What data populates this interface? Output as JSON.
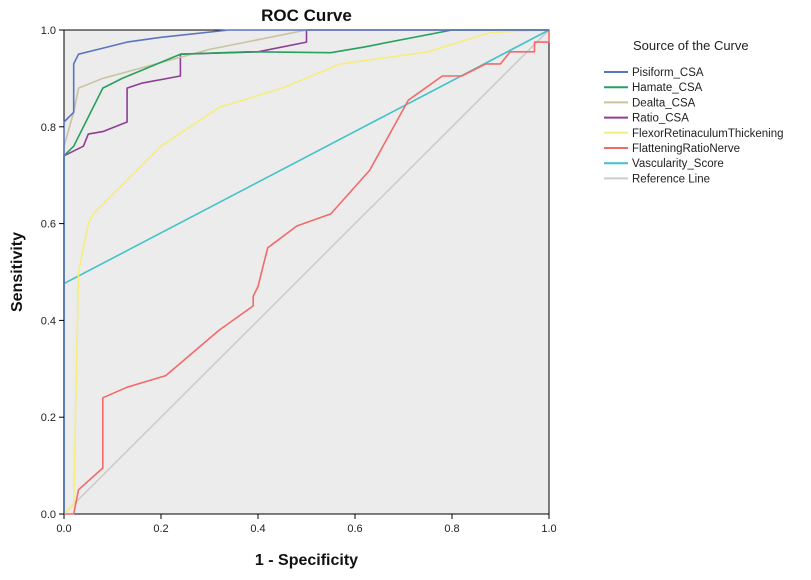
{
  "chart_data": {
    "type": "line",
    "title": "ROC Curve",
    "xlabel": "1 - Specificity",
    "ylabel": "Sensitivity",
    "xlim": [
      0.0,
      1.0
    ],
    "ylim": [
      0.0,
      1.0
    ],
    "x_ticks": [
      "0.0",
      "0.2",
      "0.4",
      "0.6",
      "0.8",
      "1.0"
    ],
    "y_ticks": [
      "0.0",
      "0.2",
      "0.4",
      "0.6",
      "0.8",
      "1.0"
    ],
    "grid": false,
    "legend_title": "Source of the Curve",
    "legend_position": "right",
    "series": [
      {
        "name": "Pisiform_CSA",
        "color": "#5b74c0",
        "points": [
          [
            0,
            0
          ],
          [
            0,
            0.81
          ],
          [
            0.02,
            0.83
          ],
          [
            0.02,
            0.93
          ],
          [
            0.03,
            0.95
          ],
          [
            0.07,
            0.96
          ],
          [
            0.13,
            0.975
          ],
          [
            0.2,
            0.985
          ],
          [
            0.34,
            1.0
          ],
          [
            1.0,
            1.0
          ]
        ]
      },
      {
        "name": "Hamate_CSA",
        "color": "#27a05e",
        "points": [
          [
            0,
            0
          ],
          [
            0,
            0.74
          ],
          [
            0.02,
            0.76
          ],
          [
            0.08,
            0.88
          ],
          [
            0.12,
            0.9
          ],
          [
            0.24,
            0.95
          ],
          [
            0.38,
            0.955
          ],
          [
            0.55,
            0.953
          ],
          [
            0.62,
            0.965
          ],
          [
            0.8,
            1.0
          ],
          [
            1.0,
            1.0
          ]
        ]
      },
      {
        "name": "Dealta_CSA",
        "color": "#c9c3a2",
        "points": [
          [
            0,
            0
          ],
          [
            0,
            0.76
          ],
          [
            0.02,
            0.83
          ],
          [
            0.03,
            0.88
          ],
          [
            0.08,
            0.9
          ],
          [
            0.3,
            0.96
          ],
          [
            0.5,
            1.0
          ],
          [
            1.0,
            1.0
          ]
        ]
      },
      {
        "name": "Ratio_CSA",
        "color": "#8c3f94",
        "points": [
          [
            0,
            0
          ],
          [
            0,
            0.74
          ],
          [
            0.04,
            0.76
          ],
          [
            0.05,
            0.785
          ],
          [
            0.08,
            0.79
          ],
          [
            0.13,
            0.81
          ],
          [
            0.13,
            0.88
          ],
          [
            0.16,
            0.89
          ],
          [
            0.24,
            0.905
          ],
          [
            0.24,
            0.95
          ],
          [
            0.4,
            0.955
          ],
          [
            0.5,
            0.975
          ],
          [
            0.5,
            1.0
          ],
          [
            1.0,
            1.0
          ]
        ]
      },
      {
        "name": "FlexorRetinaculumThickening",
        "color": "#f5ee7e",
        "points": [
          [
            0,
            0
          ],
          [
            0.02,
            0.02
          ],
          [
            0.03,
            0.5
          ],
          [
            0.05,
            0.6
          ],
          [
            0.06,
            0.62
          ],
          [
            0.1,
            0.66
          ],
          [
            0.2,
            0.76
          ],
          [
            0.32,
            0.84
          ],
          [
            0.45,
            0.88
          ],
          [
            0.57,
            0.93
          ],
          [
            0.75,
            0.955
          ],
          [
            0.88,
            0.995
          ],
          [
            1.0,
            1.0
          ]
        ]
      },
      {
        "name": "FlatteningRatioNerve",
        "color": "#f26a6a",
        "points": [
          [
            0,
            0
          ],
          [
            0.02,
            0
          ],
          [
            0.03,
            0.05
          ],
          [
            0.08,
            0.095
          ],
          [
            0.08,
            0.24
          ],
          [
            0.13,
            0.262
          ],
          [
            0.21,
            0.286
          ],
          [
            0.32,
            0.38
          ],
          [
            0.39,
            0.43
          ],
          [
            0.39,
            0.45
          ],
          [
            0.4,
            0.47
          ],
          [
            0.42,
            0.55
          ],
          [
            0.48,
            0.595
          ],
          [
            0.55,
            0.62
          ],
          [
            0.63,
            0.71
          ],
          [
            0.71,
            0.855
          ],
          [
            0.78,
            0.905
          ],
          [
            0.82,
            0.905
          ],
          [
            0.87,
            0.93
          ],
          [
            0.9,
            0.93
          ],
          [
            0.92,
            0.955
          ],
          [
            0.97,
            0.955
          ],
          [
            0.97,
            0.975
          ],
          [
            1.0,
            0.975
          ],
          [
            1.0,
            1.0
          ]
        ]
      },
      {
        "name": "Vascularity_Score",
        "color": "#3fc2c9",
        "points": [
          [
            0,
            0
          ],
          [
            0,
            0.476
          ],
          [
            1.0,
            1.0
          ]
        ]
      },
      {
        "name": "Reference Line",
        "color": "#cccccc",
        "points": [
          [
            0,
            0
          ],
          [
            1,
            1
          ]
        ]
      }
    ]
  }
}
